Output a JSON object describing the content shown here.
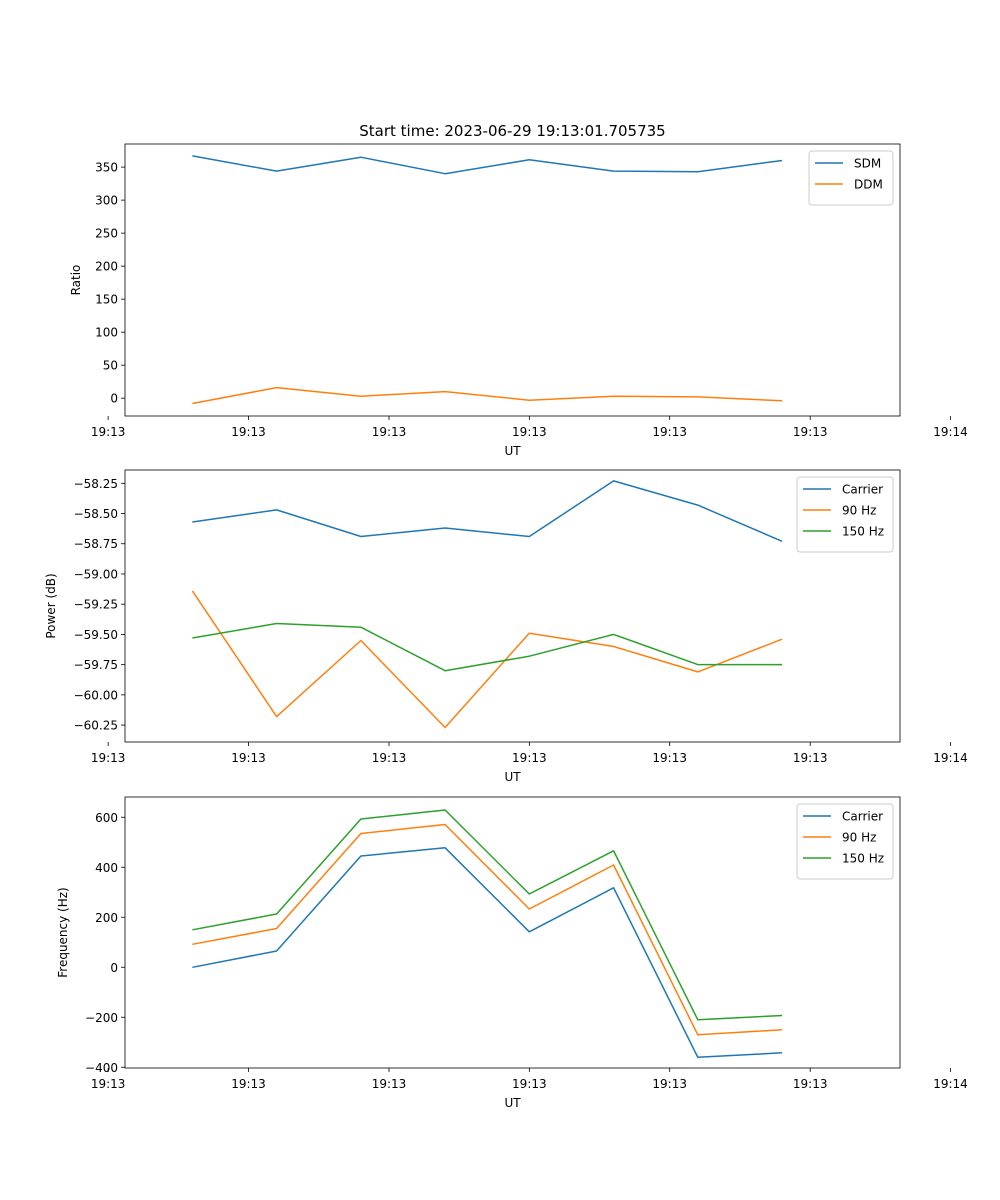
{
  "figure_title": "Start time: 2023-06-29 19:13:01.705735",
  "colors": {
    "blue": "#1f77b4",
    "orange": "#ff7f0e",
    "green": "#2ca02c"
  },
  "chart_data": [
    {
      "type": "line",
      "title": "Start time: 2023-06-29 19:13:01.705735",
      "xlabel": "UT",
      "ylabel": "Ratio",
      "x": [
        "19:13:02.5",
        "19:13:03.0",
        "19:13:03.5",
        "19:13:04.0",
        "19:13:04.5",
        "19:13:05.0",
        "19:13:05.5",
        "19:13:06.0"
      ],
      "xlim": [
        "19:13:02.1",
        "19:13:06.7"
      ],
      "xticks": [
        "19:13",
        "19:13",
        "19:13",
        "19:13",
        "19:13",
        "19:13",
        "19:14"
      ],
      "ylim": [
        -27,
        385
      ],
      "yticks": [
        0,
        50,
        100,
        150,
        200,
        250,
        300,
        350
      ],
      "legend_position": "upper right",
      "grid": false,
      "series": [
        {
          "name": "SDM",
          "color": "#1f77b4",
          "values": [
            367,
            344,
            365,
            340,
            361,
            344,
            343,
            360
          ]
        },
        {
          "name": "DDM",
          "color": "#ff7f0e",
          "values": [
            -8,
            16,
            3,
            10,
            -3,
            3,
            2,
            -4
          ]
        }
      ]
    },
    {
      "type": "line",
      "title": "",
      "xlabel": "UT",
      "ylabel": "Power (dB)",
      "x": [
        "19:13:02.5",
        "19:13:03.0",
        "19:13:03.5",
        "19:13:04.0",
        "19:13:04.5",
        "19:13:05.0",
        "19:13:05.5",
        "19:13:06.0"
      ],
      "xlim": [
        "19:13:02.1",
        "19:13:06.7"
      ],
      "xticks": [
        "19:13",
        "19:13",
        "19:13",
        "19:13",
        "19:13",
        "19:13",
        "19:14"
      ],
      "ylim": [
        -60.39,
        -58.14
      ],
      "yticks": [
        -60.25,
        -60.0,
        -59.75,
        -59.5,
        -59.25,
        -59.0,
        -58.75,
        -58.5,
        -58.25
      ],
      "ytick_labels": [
        "−60.25",
        "−60.00",
        "−59.75",
        "−59.50",
        "−59.25",
        "−59.00",
        "−58.75",
        "−58.50",
        "−58.25"
      ],
      "legend_position": "upper right",
      "grid": false,
      "series": [
        {
          "name": "Carrier",
          "color": "#1f77b4",
          "values": [
            -58.57,
            -58.47,
            -58.69,
            -58.62,
            -58.69,
            -58.23,
            -58.43,
            -58.73
          ]
        },
        {
          "name": "90 Hz",
          "color": "#ff7f0e",
          "values": [
            -59.14,
            -60.18,
            -59.55,
            -60.27,
            -59.49,
            -59.6,
            -59.81,
            -59.54
          ]
        },
        {
          "name": "150 Hz",
          "color": "#2ca02c",
          "values": [
            -59.53,
            -59.41,
            -59.44,
            -59.8,
            -59.68,
            -59.5,
            -59.75,
            -59.75
          ]
        }
      ]
    },
    {
      "type": "line",
      "title": "",
      "xlabel": "UT",
      "ylabel": "Frequency (Hz)",
      "x": [
        "19:13:02.5",
        "19:13:03.0",
        "19:13:03.5",
        "19:13:04.0",
        "19:13:04.5",
        "19:13:05.0",
        "19:13:05.5",
        "19:13:06.0"
      ],
      "xlim": [
        "19:13:02.1",
        "19:13:06.7"
      ],
      "xticks": [
        "19:13",
        "19:13",
        "19:13",
        "19:13",
        "19:13",
        "19:13",
        "19:14"
      ],
      "ylim": [
        -403,
        681
      ],
      "yticks": [
        -400,
        -200,
        0,
        200,
        400,
        600
      ],
      "ytick_labels": [
        "−400",
        "−200",
        "0",
        "200",
        "400",
        "600"
      ],
      "legend_position": "upper right",
      "grid": false,
      "series": [
        {
          "name": "Carrier",
          "color": "#1f77b4",
          "values": [
            0,
            65,
            445,
            478,
            142,
            318,
            -360,
            -342
          ]
        },
        {
          "name": "90 Hz",
          "color": "#ff7f0e",
          "values": [
            92,
            155,
            535,
            571,
            233,
            409,
            -270,
            -250
          ]
        },
        {
          "name": "150 Hz",
          "color": "#2ca02c",
          "values": [
            150,
            213,
            593,
            629,
            293,
            466,
            -210,
            -193
          ]
        }
      ]
    }
  ]
}
